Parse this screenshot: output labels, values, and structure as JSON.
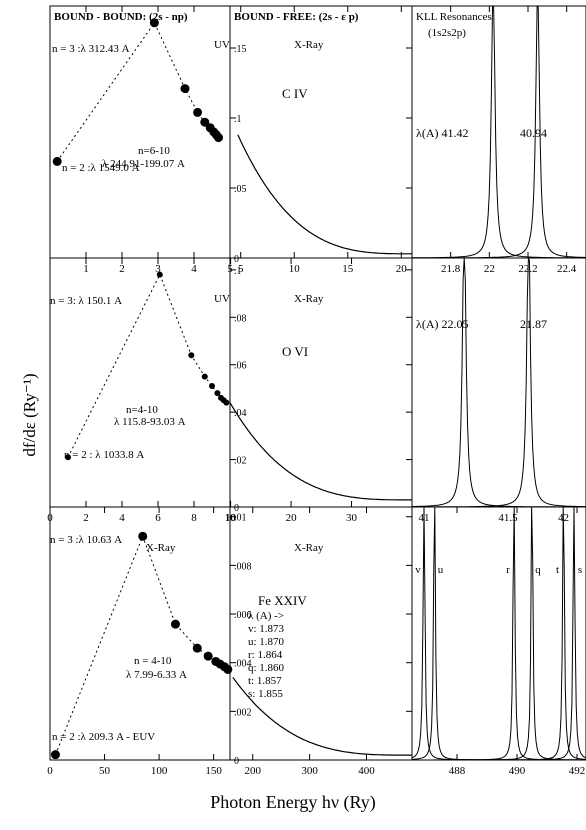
{
  "figure": {
    "xlabel": "Photon Energy hν (Ry)",
    "ylabel": "df/dε (Ry⁻¹)"
  },
  "chart_data": [
    {
      "type": "line",
      "row": 0,
      "col": 0,
      "title": "BOUND - BOUND: (2s - np)",
      "region_label": "UV",
      "xlim": [
        0,
        5
      ],
      "xticks": [
        1,
        2,
        3,
        4,
        5
      ],
      "series": [
        {
          "name": "",
          "style": "dotted-markers",
          "x": [
            0.2,
            2.9,
            3.75,
            4.1,
            4.3,
            4.45,
            4.55,
            4.62,
            4.68
          ],
          "y": [
            0.069,
            0.168,
            0.121,
            0.104,
            0.097,
            0.093,
            0.09,
            0.088,
            0.086
          ]
        }
      ],
      "annotations": [
        {
          "text": "n = 3 :λ 312.43 A",
          "x": -0.2,
          "y": 0.162
        },
        {
          "text": "n=6-10",
          "x": 3.1,
          "y": 0.08
        },
        {
          "text": "λ 244.91-199.07 A",
          "x": 1.9,
          "y": 0.07
        },
        {
          "text": "n = 2 :λ 1549.0 A",
          "x": 0.35,
          "y": 0.064
        }
      ]
    },
    {
      "type": "line",
      "row": 0,
      "col": 1,
      "title": "BOUND - FREE: (2s - ε p)",
      "region_label": "X-Ray",
      "ion": "C IV",
      "xlim": [
        4,
        21
      ],
      "ylim": [
        0,
        0.18
      ],
      "xticks": [
        5,
        10,
        15,
        20
      ],
      "yticks": [
        0,
        0.05,
        0.1,
        0.15
      ],
      "ytick_labels": [
        "0",
        ".05",
        ".1",
        ".15"
      ],
      "series": [
        {
          "name": "",
          "decay_start": 0.088,
          "x0": 4.73,
          "x_end": 21,
          "y_end": 0.003
        }
      ]
    },
    {
      "type": "line",
      "row": 0,
      "col": 2,
      "title": "KLL Resonances",
      "subtitle": "(1s2s2p)",
      "xlim": [
        21.6,
        22.5
      ],
      "xticks": [
        21.8,
        22,
        22.2,
        22.4
      ],
      "peaks": [
        22.02,
        22.25
      ],
      "annotations": [
        {
          "text": "λ(A) 41.42"
        },
        {
          "text": "40.94"
        }
      ]
    },
    {
      "type": "line",
      "row": 1,
      "col": 0,
      "region_label": "UV",
      "xlim": [
        0,
        10
      ],
      "xticks": [
        0,
        2,
        4,
        6,
        8,
        10
      ],
      "series": [
        {
          "name": "",
          "style": "dotted-markers",
          "x": [
            1.0,
            6.1,
            7.85,
            8.6,
            9.0,
            9.3,
            9.5,
            9.65,
            9.8
          ],
          "y": [
            0.021,
            0.098,
            0.064,
            0.055,
            0.051,
            0.048,
            0.046,
            0.045,
            0.044
          ]
        }
      ],
      "annotations": [
        {
          "text": "n = 3: λ 150.1 A",
          "x": 0.5,
          "y": 0.092
        },
        {
          "text": "n=4-10",
          "x": 5.5,
          "y": 0.048
        },
        {
          "text": "λ 115.8-93.03 A",
          "x": 4.7,
          "y": 0.04
        },
        {
          "text": "n = 2 : λ 1033.8 A",
          "x": 1.6,
          "y": 0.019
        }
      ]
    },
    {
      "type": "line",
      "row": 1,
      "col": 1,
      "region_label": "X-Ray",
      "ion": "O VI",
      "xlim": [
        9.9,
        40
      ],
      "ylim": [
        0,
        0.105
      ],
      "xticks": [
        10,
        20,
        30
      ],
      "yticks": [
        0,
        0.02,
        0.04,
        0.06,
        0.08,
        0.1
      ],
      "ytick_labels": [
        "0",
        ".02",
        ".04",
        ".06",
        ".08",
        ".1"
      ],
      "series": [
        {
          "name": "",
          "decay_start": 0.044,
          "x0": 9.9,
          "x_end": 40,
          "y_end": 0.003
        }
      ]
    },
    {
      "type": "line",
      "row": 1,
      "col": 2,
      "xlim": [
        0,
        1
      ],
      "peaks": [
        0.3,
        0.67
      ],
      "annotations": [
        {
          "text": "λ(A) 22.05"
        },
        {
          "text": "21.87"
        }
      ]
    },
    {
      "type": "line",
      "row": 2,
      "col": 0,
      "region_label": "X-Ray",
      "xlim": [
        0,
        165
      ],
      "xticks": [
        0,
        50,
        100,
        150
      ],
      "series": [
        {
          "name": "",
          "style": "dotted-markers",
          "x": [
            5,
            85,
            115,
            135,
            145,
            152,
            156,
            160,
            163
          ],
          "y": [
            0.0002,
            0.0084,
            0.0051,
            0.0042,
            0.0039,
            0.0037,
            0.0036,
            0.0035,
            0.0034
          ]
        }
      ],
      "annotations": [
        {
          "text": "n = 3 :λ 10.63 A",
          "x": 2,
          "y": 0.0082
        },
        {
          "text": "n = 4-10",
          "x": 110,
          "y": 0.0046
        },
        {
          "text": "λ 7.99-6.33 A",
          "x": 78,
          "y": 0.0039
        },
        {
          "text": "n = 2 :λ 209.3 A - EUV",
          "x": 12,
          "y": 5e-05
        }
      ]
    },
    {
      "type": "line",
      "row": 2,
      "col": 1,
      "region_label": "X-Ray",
      "ion": "Fe XXIV",
      "xlim": [
        160,
        480
      ],
      "ylim": [
        0,
        0.0104
      ],
      "xticks": [
        200,
        300,
        400
      ],
      "yticks": [
        0,
        0.002,
        0.004,
        0.006,
        0.008,
        0.01
      ],
      "ytick_labels": [
        "0",
        ".002",
        ".004",
        ".006",
        ".008",
        ".01"
      ],
      "series": [
        {
          "name": "",
          "decay_start": 0.0034,
          "x0": 165,
          "x_end": 480,
          "y_end": 0.0002
        }
      ]
    },
    {
      "type": "line",
      "row": 2,
      "col": 2,
      "xlim": [
        486.5,
        492.3
      ],
      "xticks": [
        488,
        490,
        492
      ],
      "top_ticks": [
        41,
        41.5,
        42
      ],
      "peaks": [
        486.9,
        487.25,
        489.9,
        490.5,
        491.55,
        491.9
      ],
      "peak_labels": [
        "v",
        "u",
        "r",
        "q",
        "t",
        "s"
      ],
      "legend_title": "λ (A) ->",
      "legend_entries": [
        "v: 1.873",
        "u: 1.870",
        "r: 1.864",
        "q: 1.860",
        "t: 1.857",
        "s: 1.855"
      ]
    }
  ]
}
